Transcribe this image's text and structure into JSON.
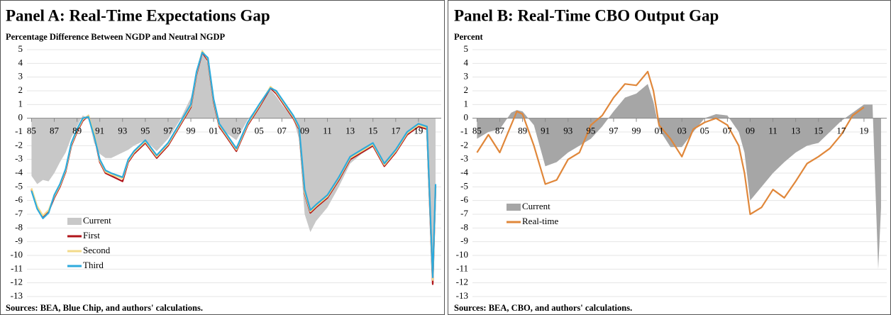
{
  "chart_data": [
    {
      "type": "line",
      "title": "Panel A: Real-Time Expectations Gap",
      "subtitle": "Percentage Difference Between NGDP and Neutral NGDP",
      "source": "Sources: BEA, Blue Chip, and authors' calculations.",
      "x": [
        1985,
        1985.5,
        1986,
        1986.5,
        1987,
        1987.5,
        1988,
        1988.5,
        1989,
        1989.5,
        1990,
        1990.5,
        1991,
        1991.5,
        1992,
        1993,
        1993.5,
        1994,
        1995,
        1996,
        1997,
        1998,
        1999,
        1999.5,
        2000,
        2000.5,
        2001,
        2001.5,
        2002,
        2003,
        2004,
        2005,
        2006,
        2006.5,
        2007,
        2008,
        2008.5,
        2009,
        2009.5,
        2010,
        2011,
        2012,
        2013,
        2014,
        2015,
        2016,
        2017,
        2018,
        2019,
        2019.75,
        2020.25,
        2020.5
      ],
      "series": [
        {
          "name": "Current",
          "type": "area",
          "color": "#c8c8c8",
          "values": [
            -4.2,
            -4.8,
            -4.5,
            -4.6,
            -4.0,
            -3.2,
            -2.5,
            -1.4,
            -0.6,
            0.2,
            0.0,
            -1.8,
            -2.6,
            -2.9,
            -2.9,
            -2.5,
            -2.3,
            -2.0,
            -1.6,
            -2.4,
            -1.5,
            -0.2,
            1.5,
            3.2,
            4.8,
            4.0,
            1.0,
            -0.8,
            -1.0,
            -1.6,
            -0.1,
            1.0,
            2.1,
            1.6,
            1.0,
            0.0,
            -1.5,
            -7.0,
            -8.3,
            -7.5,
            -6.5,
            -5.0,
            -3.3,
            -2.6,
            -2.1,
            -3.2,
            -2.4,
            -1.3,
            -0.6,
            -0.7,
            -11.5,
            -4.8
          ]
        },
        {
          "name": "First",
          "type": "line",
          "color": "#b0141a",
          "values": [
            -5.2,
            -6.5,
            -7.2,
            -6.8,
            -5.8,
            -5.0,
            -3.9,
            -2.0,
            -1.0,
            -0.2,
            0.2,
            -1.2,
            -3.2,
            -4.0,
            -4.2,
            -4.6,
            -3.2,
            -2.6,
            -1.8,
            -2.9,
            -2.0,
            -0.6,
            0.8,
            3.2,
            4.8,
            4.2,
            1.2,
            -0.6,
            -1.2,
            -2.4,
            -0.5,
            0.8,
            2.2,
            1.8,
            1.2,
            0.0,
            -0.8,
            -5.5,
            -6.9,
            -6.5,
            -5.8,
            -4.5,
            -3.0,
            -2.5,
            -2.0,
            -3.5,
            -2.5,
            -1.2,
            -0.6,
            -0.8,
            -12.1,
            -5.0
          ]
        },
        {
          "name": "Second",
          "type": "line",
          "color": "#f3da8a",
          "values": [
            -5.1,
            -6.4,
            -7.1,
            -6.7,
            -5.7,
            -4.9,
            -3.8,
            -1.9,
            -0.9,
            -0.1,
            0.2,
            -1.1,
            -3.1,
            -3.9,
            -4.1,
            -4.4,
            -3.1,
            -2.5,
            -1.7,
            -2.8,
            -1.9,
            -0.5,
            0.9,
            3.3,
            4.9,
            4.3,
            1.3,
            -0.5,
            -1.1,
            -2.3,
            -0.4,
            0.9,
            2.3,
            1.9,
            1.3,
            0.1,
            -0.7,
            -5.4,
            -6.8,
            -6.4,
            -5.7,
            -4.4,
            -2.9,
            -2.4,
            -1.9,
            -3.4,
            -2.4,
            -1.1,
            -0.5,
            -0.7,
            -11.8,
            -4.9
          ]
        },
        {
          "name": "Third",
          "type": "line",
          "color": "#2eaadc",
          "values": [
            -5.3,
            -6.6,
            -7.3,
            -6.9,
            -5.6,
            -4.8,
            -3.7,
            -1.8,
            -0.8,
            0.0,
            0.1,
            -1.3,
            -3.0,
            -3.8,
            -4.0,
            -4.3,
            -3.0,
            -2.4,
            -1.6,
            -2.7,
            -1.8,
            -0.4,
            1.0,
            3.4,
            4.8,
            4.4,
            1.4,
            -0.4,
            -1.0,
            -2.2,
            -0.3,
            1.0,
            2.2,
            2.0,
            1.4,
            0.2,
            -0.6,
            -5.2,
            -6.7,
            -6.3,
            -5.6,
            -4.3,
            -2.8,
            -2.3,
            -1.8,
            -3.3,
            -2.3,
            -1.0,
            -0.4,
            -0.6,
            -11.6,
            -4.8
          ]
        }
      ],
      "xlim": [
        1984.6,
        2021
      ],
      "xticks": [
        {
          "value": 1985,
          "label": "85"
        },
        {
          "value": 1987,
          "label": "87"
        },
        {
          "value": 1989,
          "label": "89"
        },
        {
          "value": 1991,
          "label": "91"
        },
        {
          "value": 1993,
          "label": "93"
        },
        {
          "value": 1995,
          "label": "95"
        },
        {
          "value": 1997,
          "label": "97"
        },
        {
          "value": 1999,
          "label": "99"
        },
        {
          "value": 2001,
          "label": "01"
        },
        {
          "value": 2003,
          "label": "03"
        },
        {
          "value": 2005,
          "label": "05"
        },
        {
          "value": 2007,
          "label": "07"
        },
        {
          "value": 2009,
          "label": "09"
        },
        {
          "value": 2011,
          "label": "11"
        },
        {
          "value": 2013,
          "label": "13"
        },
        {
          "value": 2015,
          "label": "15"
        },
        {
          "value": 2017,
          "label": "17"
        },
        {
          "value": 2019,
          "label": "19"
        }
      ],
      "ylim": [
        -13,
        5
      ],
      "yticks": [
        -13,
        -12,
        -11,
        -10,
        -9,
        -8,
        -7,
        -6,
        -5,
        -4,
        -3,
        -2,
        -1,
        0,
        1,
        2,
        3,
        4,
        5
      ],
      "grid": true,
      "legend": "lower left"
    },
    {
      "type": "line",
      "title": "Panel B: Real-Time CBO Output Gap",
      "subtitle": "Percent",
      "source": "Sources: BEA, CBO, and authors' calculations.",
      "x": [
        1985,
        1986,
        1987,
        1988,
        1988.5,
        1989,
        1990,
        1991,
        1992,
        1993,
        1994,
        1995,
        1996,
        1997,
        1998,
        1999,
        2000,
        2000.5,
        2001,
        2002,
        2003,
        2004,
        2005,
        2006,
        2007,
        2008,
        2008.5,
        2009,
        2010,
        2011,
        2012,
        2013,
        2014,
        2015,
        2016,
        2017,
        2018,
        2019,
        2019.75,
        2020.25,
        2020.5
      ],
      "series": [
        {
          "name": "Current",
          "type": "area",
          "color": "#a6a6a6",
          "values": [
            -1.5,
            -1.0,
            -0.8,
            0.4,
            0.6,
            0.5,
            -0.5,
            -3.5,
            -3.2,
            -2.5,
            -2.0,
            -1.5,
            -0.6,
            0.5,
            1.5,
            1.8,
            2.5,
            1.2,
            -0.8,
            -2.1,
            -2.1,
            -1.0,
            0.0,
            0.3,
            0.2,
            -1.0,
            -2.5,
            -6.0,
            -5.0,
            -4.0,
            -3.2,
            -2.5,
            -2.0,
            -1.8,
            -1.0,
            -0.2,
            0.4,
            1.0,
            1.0,
            -11.0,
            -6.5
          ]
        },
        {
          "name": "Real-time",
          "type": "line",
          "color": "#e0873a",
          "values": [
            -2.5,
            -1.2,
            -2.5,
            -0.5,
            0.5,
            0.3,
            -2.0,
            -4.8,
            -4.5,
            -3.0,
            -2.5,
            -0.5,
            0.2,
            1.5,
            2.5,
            2.4,
            3.4,
            2.0,
            -0.5,
            -1.5,
            -2.8,
            -0.8,
            -0.3,
            0.0,
            -0.5,
            -2.0,
            -4.0,
            -7.0,
            -6.5,
            -5.2,
            -5.8,
            -4.6,
            -3.3,
            -2.8,
            -2.2,
            -1.2,
            0.2,
            0.8,
            null,
            null,
            null
          ]
        }
      ],
      "xlim": [
        1984.6,
        2021
      ],
      "xticks": [
        {
          "value": 1985,
          "label": "85"
        },
        {
          "value": 1987,
          "label": "87"
        },
        {
          "value": 1989,
          "label": "89"
        },
        {
          "value": 1991,
          "label": "91"
        },
        {
          "value": 1993,
          "label": "93"
        },
        {
          "value": 1995,
          "label": "95"
        },
        {
          "value": 1997,
          "label": "97"
        },
        {
          "value": 1999,
          "label": "99"
        },
        {
          "value": 2001,
          "label": "01"
        },
        {
          "value": 2003,
          "label": "03"
        },
        {
          "value": 2005,
          "label": "05"
        },
        {
          "value": 2007,
          "label": "07"
        },
        {
          "value": 2009,
          "label": "09"
        },
        {
          "value": 2011,
          "label": "11"
        },
        {
          "value": 2013,
          "label": "13"
        },
        {
          "value": 2015,
          "label": "15"
        },
        {
          "value": 2017,
          "label": "17"
        },
        {
          "value": 2019,
          "label": "19"
        }
      ],
      "ylim": [
        -13,
        5
      ],
      "yticks": [
        -13,
        -12,
        -11,
        -10,
        -9,
        -8,
        -7,
        -6,
        -5,
        -4,
        -3,
        -2,
        -1,
        0,
        1,
        2,
        3,
        4,
        5
      ],
      "grid": true,
      "legend": "center left"
    }
  ]
}
